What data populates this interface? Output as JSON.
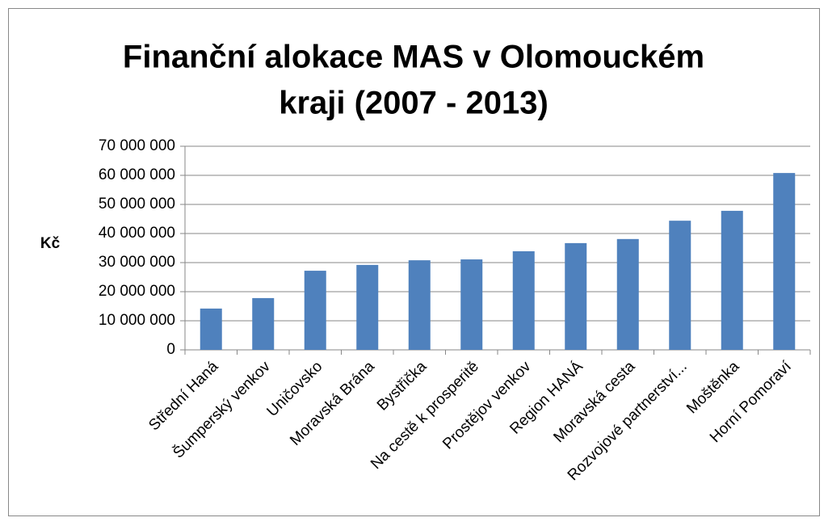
{
  "chart_data": {
    "type": "bar",
    "title": [
      "Finanční alokace MAS v Olomouckém",
      "kraji (2007 - 2013)"
    ],
    "y_label": "Kč",
    "categories": [
      "Střední Haná",
      "Šumperský venkov",
      "Uničovsko",
      "Moravská Brána",
      "Bystřička",
      "Na cestě k prosperitě",
      "Prostějov venkov",
      "Region HANÁ",
      "Moravská cesta",
      "Rozvojové partnerství...",
      "Moštěnka",
      "Horní Pomoraví"
    ],
    "values": [
      14200000,
      17800000,
      27200000,
      29200000,
      30800000,
      31100000,
      33900000,
      36700000,
      38100000,
      44400000,
      47800000,
      60800000
    ],
    "color": "#4f81bd",
    "ylim": [
      0,
      70000000
    ],
    "yticks": [
      0,
      {
        "value": 10000000,
        "label": "10 000 000"
      },
      {
        "value": 20000000,
        "label": "20 000 000"
      },
      {
        "value": 30000000,
        "label": "30 000 000"
      },
      {
        "value": 40000000,
        "label": "40 000 000"
      },
      {
        "value": 50000000,
        "label": "50 000 000"
      },
      {
        "value": 60000000,
        "label": "60 000 000"
      },
      {
        "value": 70000000,
        "label": "70 000 000"
      }
    ],
    "grid": true
  }
}
